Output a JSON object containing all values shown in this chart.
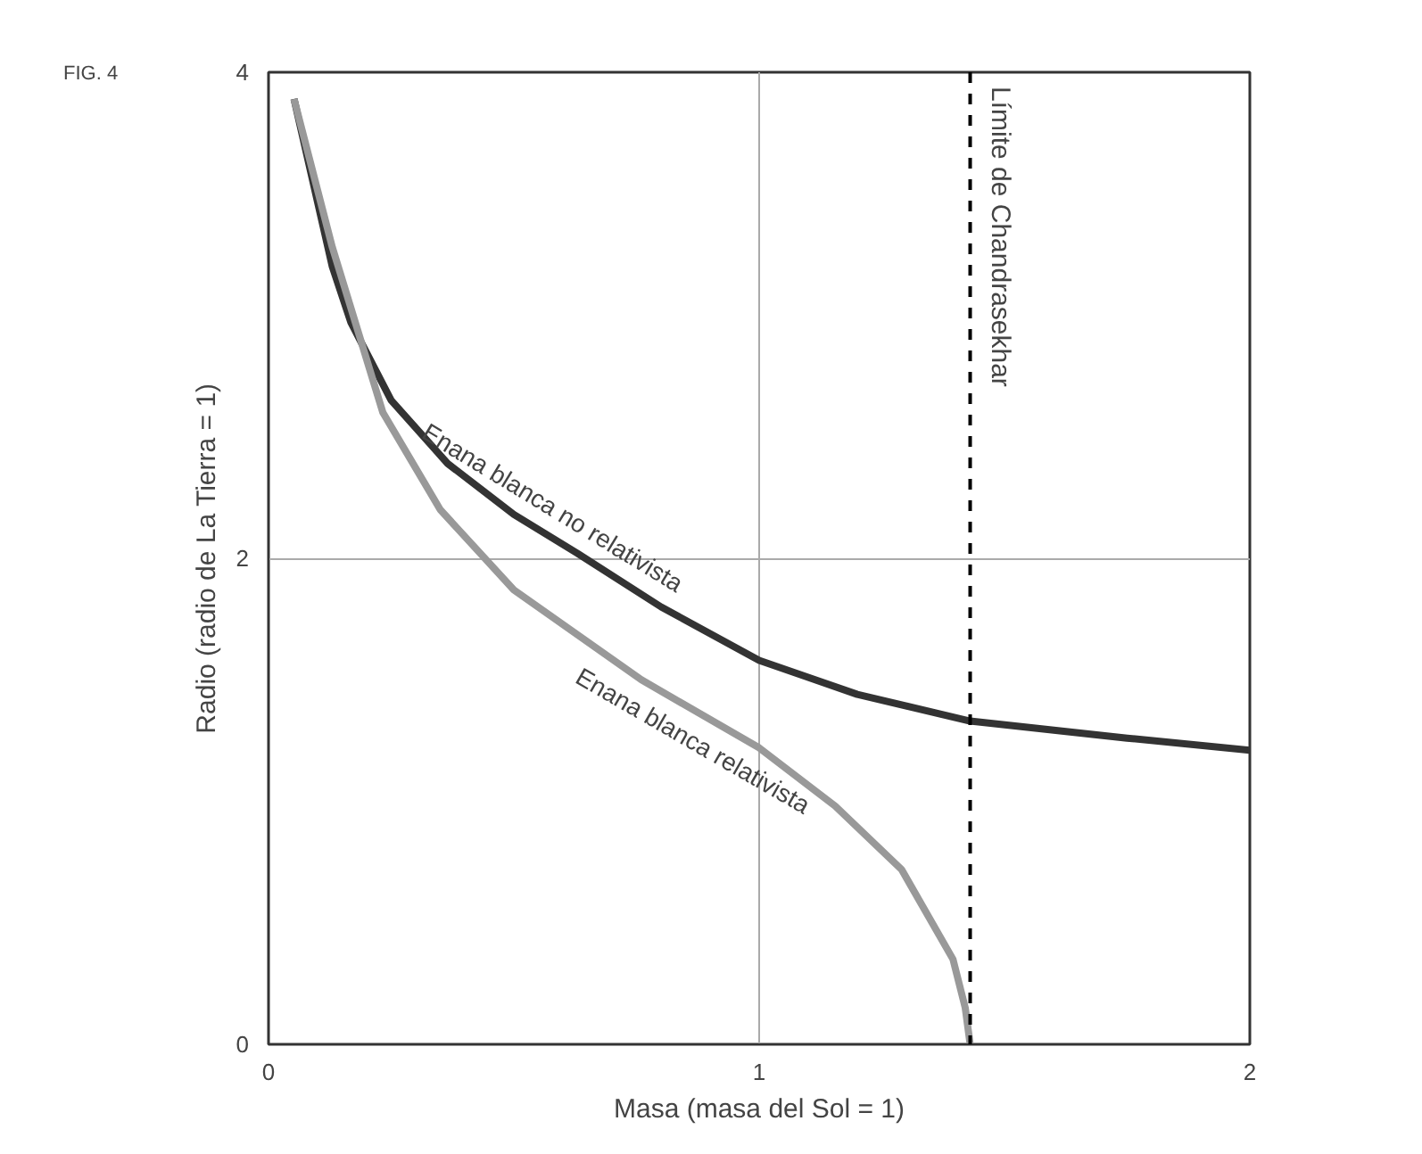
{
  "chart_data": {
    "type": "line",
    "xlabel": "Masa (masa del Sol = 1)",
    "ylabel": "Radio (radio de La Tierra = 1)",
    "annotations": [
      "FIG. 4"
    ],
    "xlim": [
      0,
      2
    ],
    "ylim": [
      0,
      4
    ],
    "xticks": [
      0,
      1,
      2
    ],
    "yticks": [
      0,
      2,
      4
    ],
    "grid": true,
    "marker": "none",
    "line_style": "solid",
    "series": [
      {
        "name": "Enana blanca no relativista",
        "color": "#333333",
        "x": [
          0.052,
          0.13,
          0.168,
          0.25,
          0.365,
          0.5,
          0.63,
          0.8,
          1.0,
          1.2,
          1.43,
          1.75,
          2.0
        ],
        "values": [
          3.89,
          3.2,
          2.97,
          2.65,
          2.39,
          2.18,
          2.02,
          1.8,
          1.58,
          1.44,
          1.33,
          1.26,
          1.21
        ]
      },
      {
        "name": "Enana blanca relativista",
        "color": "#999999",
        "x": [
          0.052,
          0.13,
          0.233,
          0.35,
          0.5,
          0.76,
          1.0,
          1.155,
          1.29,
          1.395,
          1.42,
          1.43
        ],
        "values": [
          3.89,
          3.28,
          2.6,
          2.2,
          1.87,
          1.5,
          1.22,
          0.98,
          0.72,
          0.35,
          0.15,
          0.0
        ]
      }
    ],
    "ref_lines": [
      {
        "axis": "x",
        "value": 1.43,
        "label": "Límite de Chandrasekhar",
        "color": "#000000",
        "line_style": "dashed"
      }
    ]
  }
}
